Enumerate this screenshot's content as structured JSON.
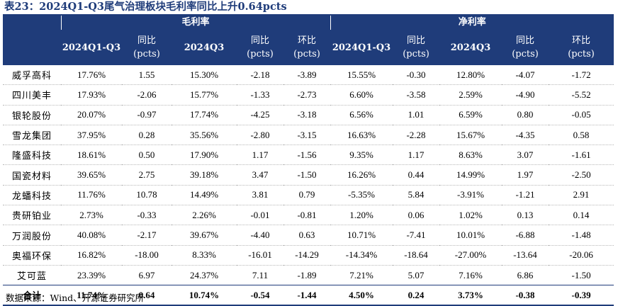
{
  "title": "表23：2024Q1-Q3尾气治理板块毛利率同比上升0.64pcts",
  "header": {
    "group_gross": "毛利率",
    "group_net": "净利率",
    "cols": [
      {
        "l1": "",
        "l2": ""
      },
      {
        "l1": "2024Q1-Q3",
        "l2": ""
      },
      {
        "l1": "同比",
        "l2": "(pcts)"
      },
      {
        "l1": "2024Q3",
        "l2": ""
      },
      {
        "l1": "同比",
        "l2": "(pcts)"
      },
      {
        "l1": "环比",
        "l2": "(pcts)"
      },
      {
        "l1": "2024Q1-Q3",
        "l2": ""
      },
      {
        "l1": "同比",
        "l2": "(pcts)"
      },
      {
        "l1": "2024Q3",
        "l2": ""
      },
      {
        "l1": "同比",
        "l2": "(pcts)"
      },
      {
        "l1": "环比",
        "l2": "(pcts)"
      }
    ]
  },
  "rows": [
    [
      "威孚高科",
      "17.76%",
      "1.55",
      "15.30%",
      "-2.18",
      "-3.89",
      "15.55%",
      "-0.30",
      "12.80%",
      "-4.07",
      "-1.72"
    ],
    [
      "四川美丰",
      "17.93%",
      "-2.06",
      "15.77%",
      "-1.33",
      "-2.73",
      "6.60%",
      "-3.58",
      "2.59%",
      "-4.90",
      "-5.52"
    ],
    [
      "银轮股份",
      "20.07%",
      "-0.97",
      "17.74%",
      "-4.25",
      "-3.18",
      "6.56%",
      "1.01",
      "6.59%",
      "0.80",
      "-0.05"
    ],
    [
      "雪龙集团",
      "37.95%",
      "0.28",
      "35.56%",
      "-2.80",
      "-3.15",
      "16.63%",
      "-2.28",
      "15.67%",
      "-4.35",
      "0.58"
    ],
    [
      "隆盛科技",
      "18.61%",
      "0.50",
      "17.90%",
      "1.17",
      "-1.56",
      "9.35%",
      "1.17",
      "8.63%",
      "3.07",
      "-1.61"
    ],
    [
      "国瓷材料",
      "39.65%",
      "2.75",
      "39.18%",
      "3.47",
      "-1.50",
      "16.26%",
      "0.44",
      "14.99%",
      "1.97",
      "-2.50"
    ],
    [
      "龙蟠科技",
      "11.76%",
      "10.78",
      "14.49%",
      "3.81",
      "0.79",
      "-5.35%",
      "5.84",
      "-3.91%",
      "-1.21",
      "2.91"
    ],
    [
      "贵研铂业",
      "2.73%",
      "-0.33",
      "2.26%",
      "-0.01",
      "-0.81",
      "1.20%",
      "0.06",
      "1.02%",
      "0.13",
      "0.14"
    ],
    [
      "万润股份",
      "40.08%",
      "-2.17",
      "39.67%",
      "-4.40",
      "0.63",
      "10.71%",
      "-7.41",
      "10.01%",
      "-6.88",
      "-1.48"
    ],
    [
      "奥福环保",
      "16.82%",
      "-18.00",
      "8.33%",
      "-16.01",
      "-14.29",
      "-14.34%",
      "-18.64",
      "-27.00%",
      "-13.64",
      "-20.06"
    ],
    [
      "艾可蓝",
      "23.39%",
      "6.97",
      "24.37%",
      "7.11",
      "-1.89",
      "7.21%",
      "5.07",
      "7.16%",
      "6.86",
      "-1.50"
    ]
  ],
  "total": [
    "合计",
    "11.74%",
    "0.64",
    "10.74%",
    "-0.54",
    "-1.44",
    "4.50%",
    "0.24",
    "3.73%",
    "-0.38",
    "-0.39"
  ],
  "source": "数据来源：Wind、开源证券研究所",
  "colors": {
    "header_bg": "#1f3c7a",
    "header_text": "#ffffff"
  }
}
